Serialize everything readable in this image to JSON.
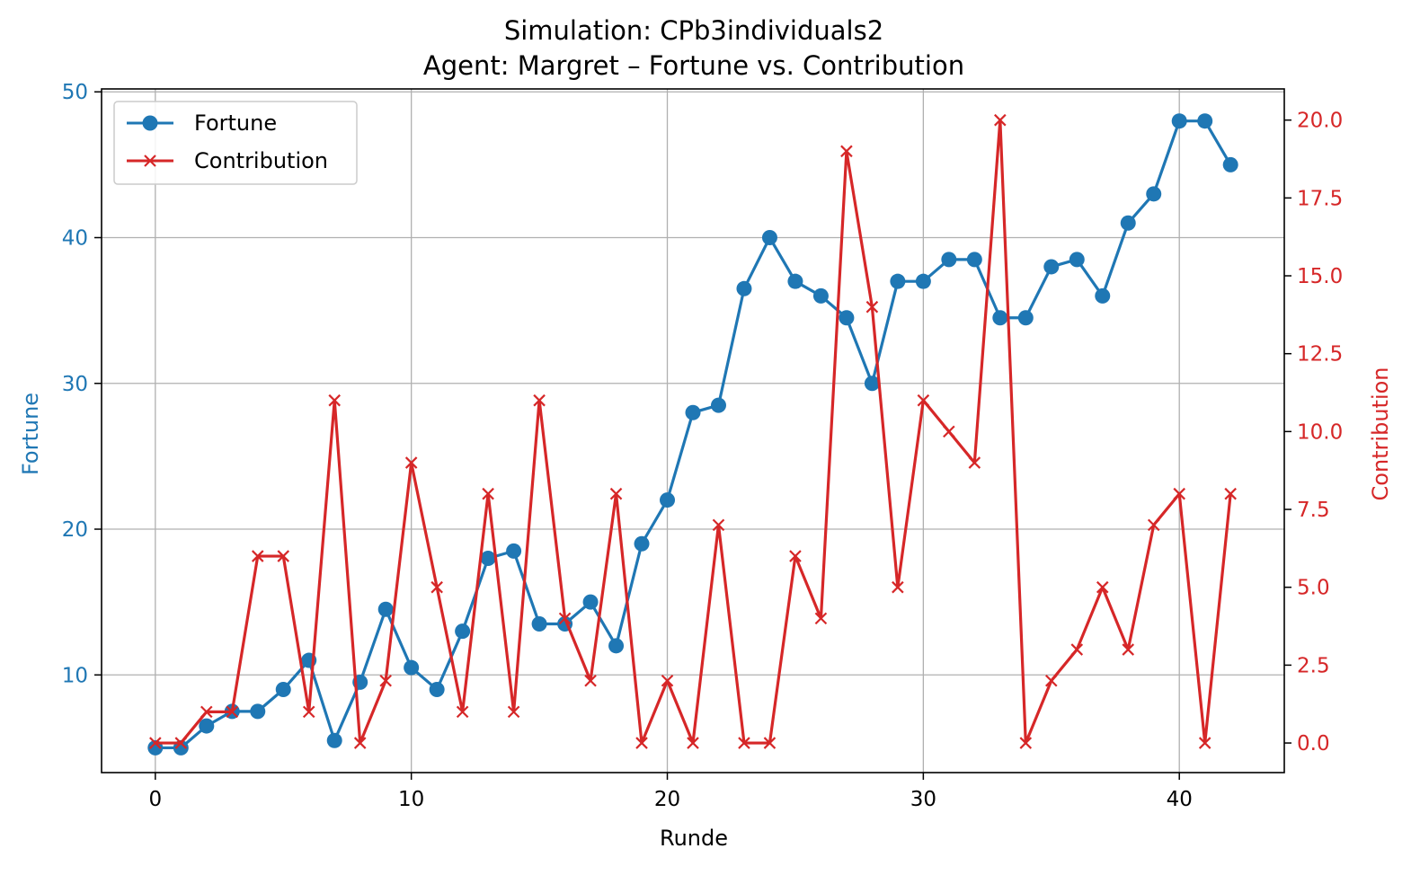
{
  "chart_data": {
    "type": "line",
    "title": "Simulation: CPb3individuals2",
    "subtitle": "Agent: Margret – Fortune vs. Contribution",
    "xlabel": "Runde",
    "ylabel_left": "Fortune",
    "ylabel_right": "Contribution",
    "xlim": [
      -2.1,
      44.1
    ],
    "ylim_left": [
      3.3,
      50.2
    ],
    "ylim_right": [
      -0.95,
      21.0
    ],
    "x_ticks": [
      0,
      10,
      20,
      30,
      40
    ],
    "y_left_ticks": [
      10,
      20,
      30,
      40,
      50
    ],
    "y_right_ticks": [
      "0.0",
      "2.5",
      "5.0",
      "7.5",
      "10.0",
      "12.5",
      "15.0",
      "17.5",
      "20.0"
    ],
    "grid": true,
    "legend_position": "upper left",
    "colors": {
      "fortune": "#1f77b4",
      "contribution": "#d62728"
    },
    "x": [
      0,
      1,
      2,
      3,
      4,
      5,
      6,
      7,
      8,
      9,
      10,
      11,
      12,
      13,
      14,
      15,
      16,
      17,
      18,
      19,
      20,
      21,
      22,
      23,
      24,
      25,
      26,
      27,
      28,
      29,
      30,
      31,
      32,
      33,
      34,
      35,
      36,
      37,
      38,
      39,
      40,
      41,
      42
    ],
    "series": [
      {
        "name": "Fortune",
        "axis": "left",
        "marker": "circle",
        "values": [
          5,
          5,
          6.5,
          7.5,
          7.5,
          9,
          11,
          5.5,
          9.5,
          14.5,
          10.5,
          9,
          13,
          18,
          18.5,
          13.5,
          13.5,
          15,
          12,
          19,
          22,
          28,
          28.5,
          36.5,
          40,
          37,
          36,
          34.5,
          30,
          37,
          37,
          38.5,
          38.5,
          34.5,
          34.5,
          38,
          38.5,
          36,
          41,
          43,
          48,
          48,
          45
        ]
      },
      {
        "name": "Contribution",
        "axis": "right",
        "marker": "x",
        "values": [
          0,
          0,
          1,
          1,
          6,
          6,
          1,
          11,
          0,
          2,
          9,
          5,
          1,
          8,
          1,
          11,
          4,
          2,
          8,
          0,
          2,
          0,
          7,
          0,
          0,
          6,
          4,
          19,
          14,
          5,
          11,
          10,
          9,
          20,
          0,
          2,
          3,
          5,
          3,
          7,
          8,
          0,
          8
        ]
      }
    ]
  }
}
